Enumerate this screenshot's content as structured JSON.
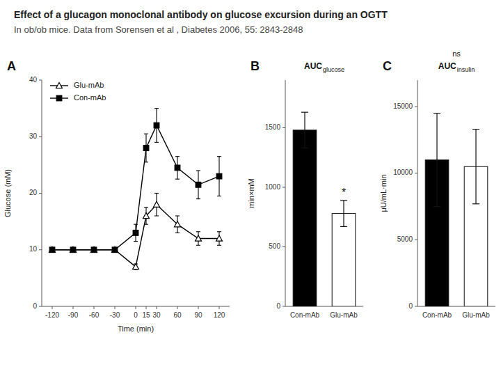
{
  "title": "Effect of a glucagon monoclonal antibody on glucose excursion during an OGTT",
  "subtitle": "In ob/ob mice. Data from Sorensen et al , Diabetes 2006, 55: 2843-2848",
  "chart_data": [
    {
      "type": "line",
      "x": [
        -120,
        -90,
        -60,
        -30,
        0,
        15,
        30,
        60,
        90,
        120
      ],
      "xlim": [
        -135,
        135
      ],
      "xticks": [
        -120,
        -90,
        -60,
        -30,
        0,
        15,
        30,
        60,
        90,
        120
      ],
      "ylim": [
        0,
        40
      ],
      "yticks": [
        0,
        10,
        20,
        30,
        40
      ],
      "x_label": "Time (min)",
      "y_label": "Glucose (mM)",
      "legend": "upper left",
      "annotations": [
        {
          "text": "A"
        }
      ],
      "series": [
        {
          "name": "Glu-mAb",
          "color": "black",
          "marker": "open-triangle",
          "line_style": "solid",
          "values": [
            10.0,
            10.0,
            10.0,
            10.0,
            7.0,
            16.0,
            18.0,
            14.5,
            12.0,
            12.0
          ],
          "errors": [
            0.3,
            0.3,
            0.3,
            0.3,
            0.5,
            1.5,
            2.0,
            1.5,
            1.2,
            1.2
          ]
        },
        {
          "name": "Con-mAb",
          "color": "black",
          "marker": "square",
          "line_style": "solid",
          "values": [
            10.0,
            10.0,
            10.0,
            10.0,
            13.0,
            28.0,
            32.0,
            24.5,
            21.5,
            23.0
          ],
          "errors": [
            0.3,
            0.3,
            0.3,
            0.3,
            1.5,
            2.5,
            3.0,
            2.0,
            2.5,
            3.5
          ]
        }
      ]
    },
    {
      "type": "bar",
      "title": "AUC",
      "subtitle": "glucose",
      "categories": [
        "Con-mAb",
        "Glu-mAb"
      ],
      "values": [
        1480,
        780
      ],
      "errors": [
        150,
        110
      ],
      "colors": [
        "black",
        "white"
      ],
      "y_label": "min×mM",
      "ylim": [
        0,
        1900
      ],
      "yticks": [
        0,
        500,
        1000,
        1500
      ],
      "annotations": [
        {
          "text": "B"
        },
        {
          "text": "*",
          "x": "Glu-mAb"
        }
      ]
    },
    {
      "type": "bar",
      "title": "AUC",
      "subtitle": "insulin",
      "categories": [
        "Con-mAb",
        "Glu-mAb"
      ],
      "values": [
        11000,
        10500
      ],
      "errors": [
        3500,
        2800
      ],
      "colors": [
        "black",
        "white"
      ],
      "y_label": "μU/mL·min",
      "ylim": [
        0,
        17000
      ],
      "yticks": [
        0,
        5000,
        10000,
        15000
      ],
      "annotations": [
        {
          "text": "C"
        },
        {
          "text": "ns"
        }
      ]
    }
  ]
}
